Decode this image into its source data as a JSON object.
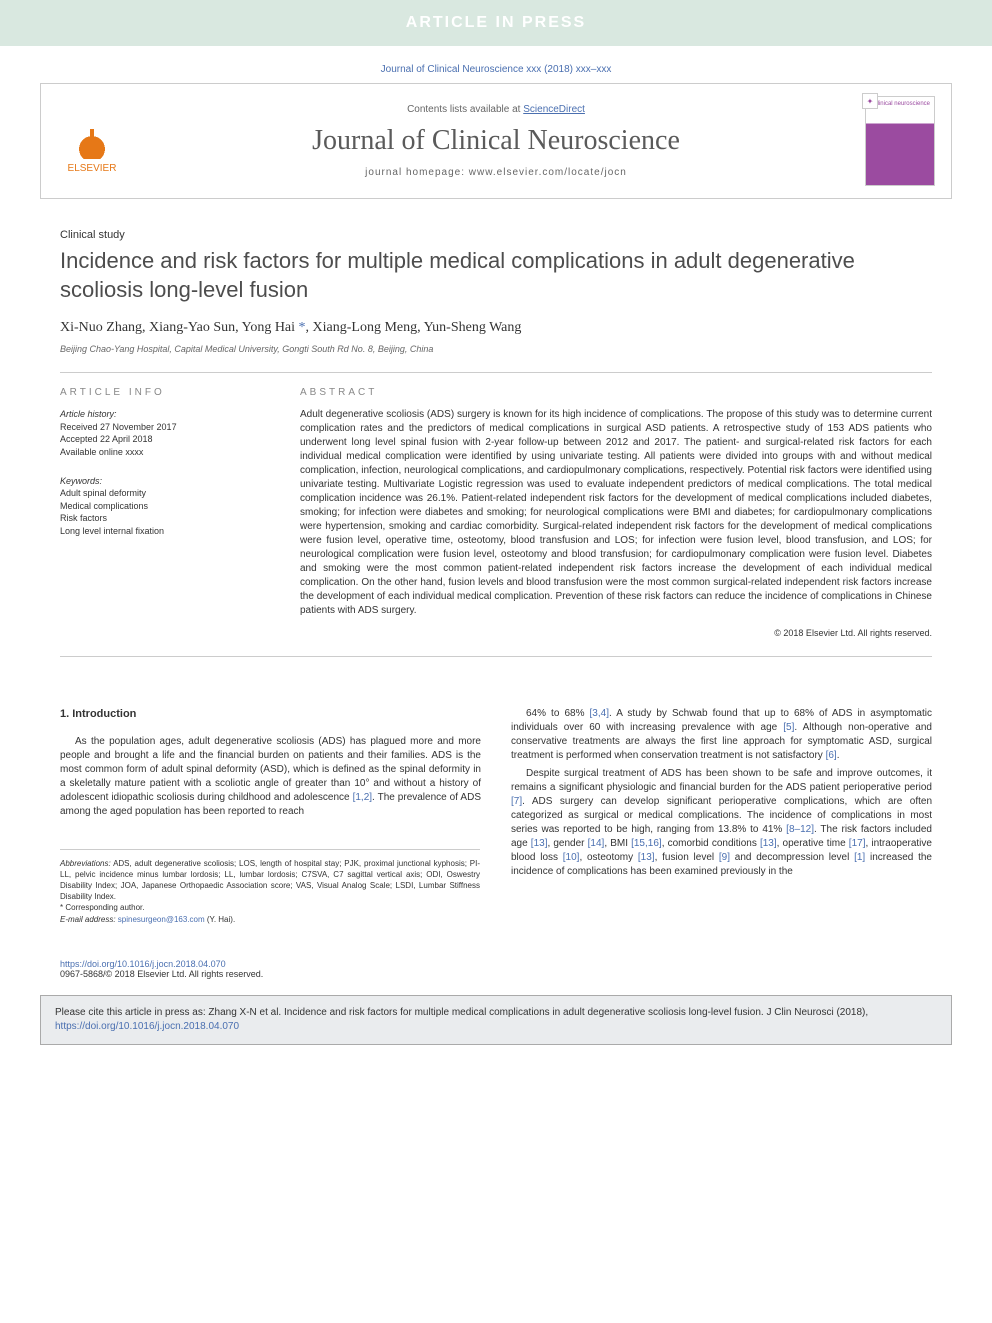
{
  "banner": {
    "text": "ARTICLE IN PRESS",
    "bg": "#d9e8e0",
    "fg": "#ffffff"
  },
  "journal_ref": "Journal of Clinical Neuroscience xxx (2018) xxx–xxx",
  "header": {
    "contents_prefix": "Contents lists available at ",
    "contents_link": "ScienceDirect",
    "journal_name": "Journal of Clinical Neuroscience",
    "homepage_prefix": "journal homepage: ",
    "homepage_url": "www.elsevier.com/locate/jocn",
    "publisher": "ELSEVIER",
    "colors": {
      "elsevier_orange": "#e67817",
      "link_blue": "#4a6fb0",
      "cover_purple": "#9b4ba0"
    }
  },
  "article": {
    "type": "Clinical study",
    "title": "Incidence and risk factors for multiple medical complications in adult degenerative scoliosis long-level fusion",
    "authors_html": "Xi-Nuo Zhang, Xiang-Yao Sun, Yong Hai <span class='corr'>*</span>, Xiang-Long Meng, Yun-Sheng Wang",
    "affiliation": "Beijing Chao-Yang Hospital, Capital Medical University, Gongti South Rd No. 8, Beijing, China"
  },
  "info": {
    "heading": "ARTICLE INFO",
    "history_label": "Article history:",
    "received": "Received 27 November 2017",
    "accepted": "Accepted 22 April 2018",
    "online": "Available online xxxx",
    "keywords_label": "Keywords:",
    "keywords": [
      "Adult spinal deformity",
      "Medical complications",
      "Risk factors",
      "Long level internal fixation"
    ]
  },
  "abstract": {
    "heading": "ABSTRACT",
    "text": "Adult degenerative scoliosis (ADS) surgery is known for its high incidence of complications. The propose of this study was to determine current complication rates and the predictors of medical complications in surgical ASD patients. A retrospective study of 153 ADS patients who underwent long level spinal fusion with 2-year follow-up between 2012 and 2017. The patient- and surgical-related risk factors for each individual medical complication were identified by using univariate testing. All patients were divided into groups with and without medical complication, infection, neurological complications, and cardiopulmonary complications, respectively. Potential risk factors were identified using univariate testing. Multivariate Logistic regression was used to evaluate independent predictors of medical complications. The total medical complication incidence was 26.1%. Patient-related independent risk factors for the development of medical complications included diabetes, smoking; for infection were diabetes and smoking; for neurological complications were BMI and diabetes; for cardiopulmonary complications were hypertension, smoking and cardiac comorbidity. Surgical-related independent risk factors for the development of medical complications were fusion level, operative time, osteotomy, blood transfusion and LOS; for infection were fusion level, blood transfusion, and LOS; for neurological complication were fusion level, osteotomy and blood transfusion; for cardiopulmonary complication were fusion level. Diabetes and smoking were the most common patient-related independent risk factors increase the development of each individual medical complication. On the other hand, fusion levels and blood transfusion were the most common surgical-related independent risk factors increase the development of each individual medical complication. Prevention of these risk factors can reduce the incidence of complications in Chinese patients with ADS surgery.",
    "copyright": "© 2018 Elsevier Ltd. All rights reserved."
  },
  "intro": {
    "heading": "1. Introduction",
    "left": "As the population ages, adult degenerative scoliosis (ADS) has plagued more and more people and brought a life and the financial burden on patients and their families. ADS is the most common form of adult spinal deformity (ASD), which is defined as the spinal deformity in a skeletally mature patient with a scoliotic angle of greater than 10° and without a history of adolescent idiopathic scoliosis during childhood and adolescence [1,2]. The prevalence of ADS among the aged population has been reported to reach",
    "right_p1": "64% to 68% [3,4]. A study by Schwab found that up to 68% of ADS in asymptomatic individuals over 60 with increasing prevalence with age [5]. Although non-operative and conservative treatments are always the first line approach for symptomatic ASD, surgical treatment is performed when conservation treatment is not satisfactory [6].",
    "right_p2": "Despite surgical treatment of ADS has been shown to be safe and improve outcomes, it remains a significant physiologic and financial burden for the ADS patient perioperative period [7]. ADS surgery can develop significant perioperative complications, which are often categorized as surgical or medical complications. The incidence of complications in most series was reported to be high, ranging from 13.8% to 41% [8–12]. The risk factors included age [13], gender [14], BMI [15,16], comorbid conditions [13], operative time [17], intraoperative blood loss [10], osteotomy [13], fusion level [9] and decompression level [1] increased the incidence of complications has been examined previously in the",
    "refs": {
      "r12": "[1,2]",
      "r34": "[3,4]",
      "r5": "[5]",
      "r6": "[6]",
      "r7": "[7]",
      "r812": "[8–12]",
      "r13": "[13]",
      "r14": "[14]",
      "r1516": "[15,16]",
      "r17": "[17]",
      "r10": "[10]",
      "r9": "[9]",
      "r1": "[1]"
    }
  },
  "footnotes": {
    "abbrev_label": "Abbreviations:",
    "abbrev": " ADS, adult degenerative scoliosis; LOS, length of hospital stay; PJK, proximal junctional kyphosis; PI-LL, pelvic incidence minus lumbar lordosis; LL, lumbar lordosis; C7SVA, C7 sagittal vertical axis; ODI, Oswestry Disability Index; JOA, Japanese Orthopaedic Association score; VAS, Visual Analog Scale; LSDI, Lumbar Stiffness Disability Index.",
    "corr_label": "* Corresponding author.",
    "email_label": "E-mail address: ",
    "email": "spinesurgeon@163.com",
    "email_suffix": " (Y. Hai)."
  },
  "doi": {
    "url": "https://doi.org/10.1016/j.jocn.2018.04.070",
    "issn": "0967-5868/© 2018 Elsevier Ltd. All rights reserved."
  },
  "citebox": {
    "text": "Please cite this article in press as: Zhang X-N et al. Incidence and risk factors for multiple medical complications in adult degenerative scoliosis long-level fusion. J Clin Neurosci (2018), ",
    "url": "https://doi.org/10.1016/j.jocn.2018.04.070"
  }
}
